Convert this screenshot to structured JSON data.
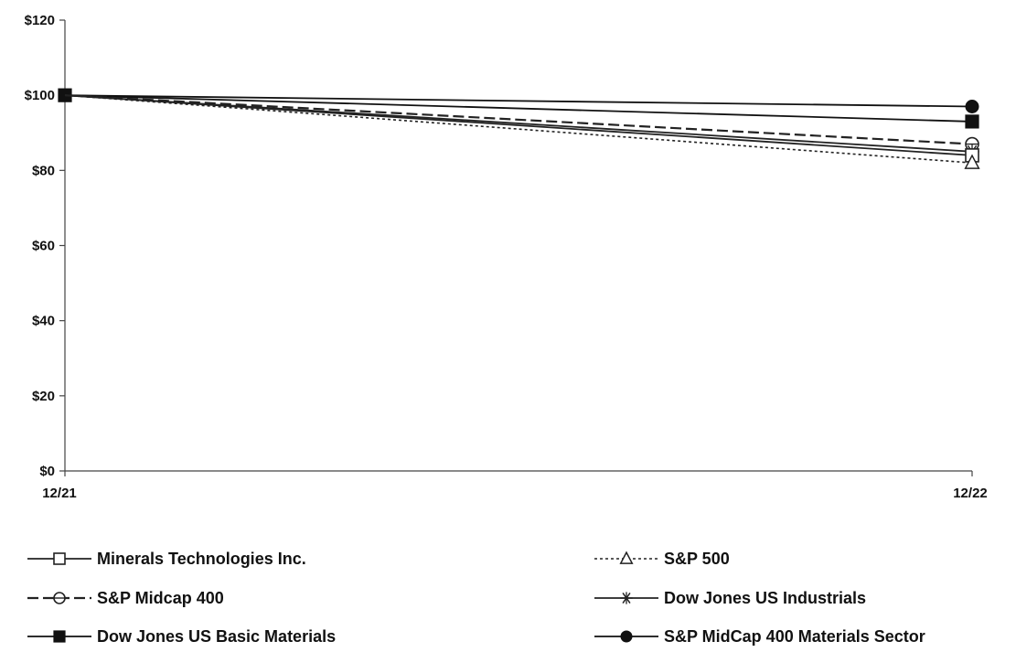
{
  "chart_data": {
    "type": "line",
    "title": "",
    "xlabel": "",
    "ylabel": "",
    "x": [
      "12/21",
      "12/22"
    ],
    "ylim": [
      0,
      120
    ],
    "yticks": [
      0,
      20,
      40,
      60,
      80,
      100,
      120
    ],
    "ytick_labels": [
      "$0",
      "$20",
      "$40",
      "$60",
      "$80",
      "$100",
      "$120"
    ],
    "grid": false,
    "legend_position": "bottom",
    "series": [
      {
        "name": "Minerals Technologies Inc.",
        "values": [
          100,
          84
        ],
        "line_style": "solid",
        "marker": "open-square",
        "color": "#222222"
      },
      {
        "name": "S&P 500",
        "values": [
          100,
          82
        ],
        "line_style": "dotted",
        "marker": "open-triangle",
        "color": "#222222"
      },
      {
        "name": "S&P Midcap 400",
        "values": [
          100,
          87
        ],
        "line_style": "dashed",
        "marker": "open-circle",
        "color": "#222222"
      },
      {
        "name": "Dow Jones US Industrials",
        "values": [
          100,
          85
        ],
        "line_style": "solid",
        "marker": "asterisk",
        "color": "#222222"
      },
      {
        "name": "Dow Jones US Basic Materials",
        "values": [
          100,
          93
        ],
        "line_style": "solid",
        "marker": "filled-square",
        "color": "#111111"
      },
      {
        "name": "S&P MidCap 400 Materials Sector",
        "values": [
          100,
          97
        ],
        "line_style": "solid",
        "marker": "filled-circle",
        "color": "#111111"
      }
    ]
  }
}
